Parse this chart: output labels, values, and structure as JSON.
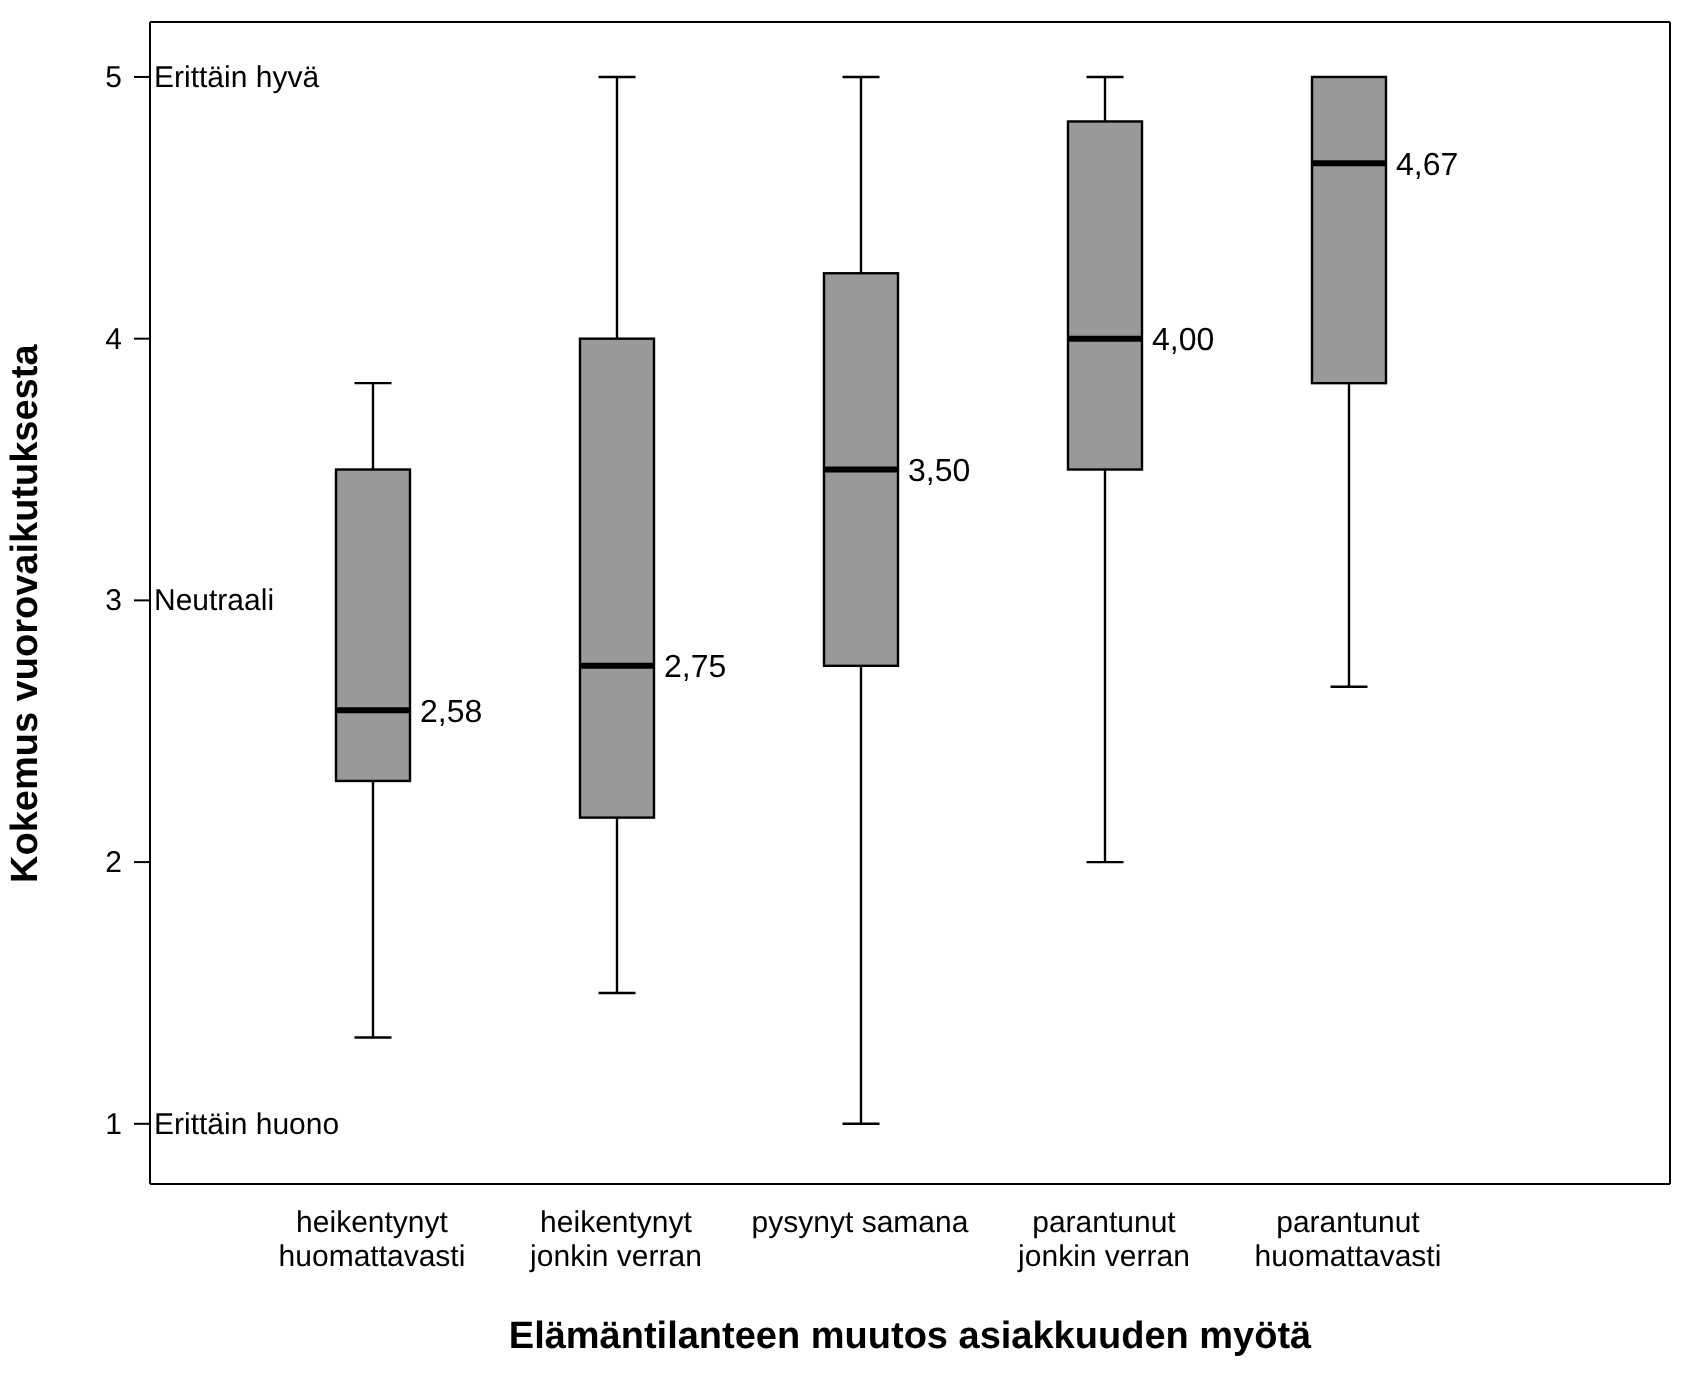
{
  "chart_data": {
    "type": "box",
    "xlabel": "Elämäntilanteen muutos asiakkuuden myötä",
    "ylabel": "Kokemus vuorovaikutuksesta",
    "categories": [
      "heikentynyt huomattavasti",
      "heikentynyt jonkin verran",
      "pysynyt samana",
      "parantunut jonkin verran",
      "parantunut huomattavasti"
    ],
    "color": "#999999",
    "boxes": [
      {
        "low": 1.33,
        "q1": 2.31,
        "median": 2.58,
        "q3": 3.5,
        "high": 3.83
      },
      {
        "low": 1.5,
        "q1": 2.17,
        "median": 2.75,
        "q3": 4.0,
        "high": 5
      },
      {
        "low": 1,
        "q1": 2.75,
        "median": 3.5,
        "q3": 4.25,
        "high": 5
      },
      {
        "low": 2,
        "q1": 3.5,
        "median": 4.0,
        "q3": 4.83,
        "high": 5
      },
      {
        "low": 2.67,
        "q1": 3.83,
        "median": 4.67,
        "q3": 5,
        "high": 5
      }
    ],
    "ylim": [
      0.77,
      5.21
    ],
    "yticks": [
      1,
      2,
      3,
      4,
      5
    ],
    "grid": false,
    "annotations": [
      "Erittäin hyvä",
      "Neutraali",
      "Erittäin huono",
      {
        "text": "2,58",
        "x": "heikentynyt huomattavasti",
        "y": 2.58
      },
      {
        "text": "2,75",
        "x": "heikentynyt jonkin verran",
        "y": 2.75
      },
      {
        "text": "3,50",
        "x": "pysynyt samana",
        "y": 3.5
      },
      {
        "text": "4,00",
        "x": "parantunut jonkin verran",
        "y": 4.0
      },
      {
        "text": "4,67",
        "x": "parantunut huomattavasti",
        "y": 4.67
      }
    ]
  }
}
